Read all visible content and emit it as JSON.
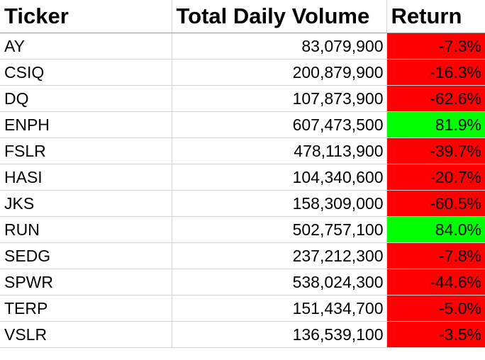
{
  "sheet": {
    "headers": {
      "ticker": "Ticker",
      "volume": "Total Daily Volume",
      "return": "Return"
    },
    "rows": [
      {
        "ticker": "AY",
        "volume": "83,079,900",
        "return": "-7.3%",
        "status": "negative"
      },
      {
        "ticker": "CSIQ",
        "volume": "200,879,900",
        "return": "-16.3%",
        "status": "negative"
      },
      {
        "ticker": "DQ",
        "volume": "107,873,900",
        "return": "-62.6%",
        "status": "negative"
      },
      {
        "ticker": "ENPH",
        "volume": "607,473,500",
        "return": "81.9%",
        "status": "positive"
      },
      {
        "ticker": "FSLR",
        "volume": "478,113,900",
        "return": "-39.7%",
        "status": "negative"
      },
      {
        "ticker": "HASI",
        "volume": "104,340,600",
        "return": "-20.7%",
        "status": "negative"
      },
      {
        "ticker": "JKS",
        "volume": "158,309,000",
        "return": "-60.5%",
        "status": "negative"
      },
      {
        "ticker": "RUN",
        "volume": "502,757,100",
        "return": "84.0%",
        "status": "positive"
      },
      {
        "ticker": "SEDG",
        "volume": "237,212,300",
        "return": "-7.8%",
        "status": "negative"
      },
      {
        "ticker": "SPWR",
        "volume": "538,024,300",
        "return": "-44.6%",
        "status": "negative"
      },
      {
        "ticker": "TERP",
        "volume": "151,434,700",
        "return": "-5.0%",
        "status": "negative"
      },
      {
        "ticker": "VSLR",
        "volume": "136,539,100",
        "return": "-3.5%",
        "status": "negative"
      }
    ]
  },
  "colors": {
    "negative": "#ff0000",
    "positive": "#00ff00",
    "gridline": "#d4d4d4"
  }
}
